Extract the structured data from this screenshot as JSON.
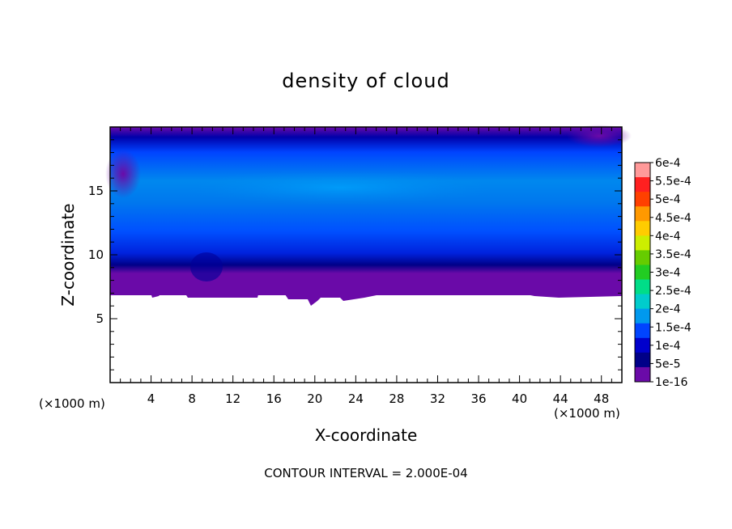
{
  "chart_data": {
    "type": "heatmap",
    "title": "density of cloud",
    "xlabel": "X-coordinate",
    "ylabel": "Z-coordinate",
    "x_unit_left": "(×1000 m)",
    "x_unit_right": "(×1000 m)",
    "note": "CONTOUR INTERVAL = 2.000E-04",
    "xlim": [
      0,
      50
    ],
    "ylim": [
      0,
      20
    ],
    "x_ticks": [
      "4",
      "8",
      "12",
      "16",
      "20",
      "24",
      "28",
      "32",
      "36",
      "40",
      "44",
      "48"
    ],
    "y_ticks": [
      "5",
      "10",
      "15"
    ],
    "colorbar": {
      "labels": [
        "6e-4",
        "5.5e-4",
        "5e-4",
        "4.5e-4",
        "4e-4",
        "3.5e-4",
        "3e-4",
        "2.5e-4",
        "2e-4",
        "1.5e-4",
        "1e-4",
        "5e-5",
        "1e-16"
      ],
      "colors": [
        "#ff9999",
        "#ff2020",
        "#ff4000",
        "#ff9900",
        "#ffcc00",
        "#ccee00",
        "#66cc00",
        "#22cc22",
        "#00dd88",
        "#00cccc",
        "#0099ee",
        "#0044ff",
        "#0000cc",
        "#000088",
        "#6a0aa8"
      ]
    },
    "cloud_base_km": 7,
    "cloud_top_km": 20,
    "approx_max_value": 0.00015
  }
}
